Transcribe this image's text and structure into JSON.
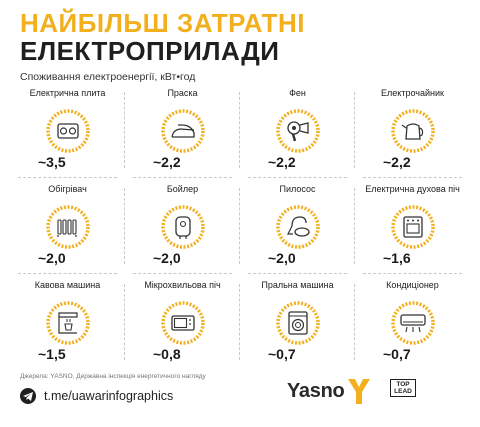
{
  "header": {
    "title_line1": "НАЙБІЛЬШ ЗАТРАТНІ",
    "title_line2": "ЕЛЕКТРОПРИЛАДИ",
    "subtitle": "Споживання електроенергії, кВт•год"
  },
  "colors": {
    "accent": "#f2b01e",
    "text": "#1f1f1f",
    "divider": "#c9c9c9"
  },
  "appliances": [
    {
      "name": "Електрична плита",
      "value": "~3,5",
      "icon": "electric-stove-icon"
    },
    {
      "name": "Праска",
      "value": "~2,2",
      "icon": "iron-icon"
    },
    {
      "name": "Фен",
      "value": "~2,2",
      "icon": "hair-dryer-icon"
    },
    {
      "name": "Електрочайник",
      "value": "~2,2",
      "icon": "kettle-icon"
    },
    {
      "name": "Обігрівач",
      "value": "~2,0",
      "icon": "heater-icon"
    },
    {
      "name": "Бойлер",
      "value": "~2,0",
      "icon": "boiler-icon"
    },
    {
      "name": "Пилосос",
      "value": "~2,0",
      "icon": "vacuum-icon"
    },
    {
      "name": "Електрична духова піч",
      "value": "~1,6",
      "icon": "oven-icon"
    },
    {
      "name": "Кавова машина",
      "value": "~1,5",
      "icon": "coffee-machine-icon"
    },
    {
      "name": "Мікрохвильова піч",
      "value": "~0,8",
      "icon": "microwave-icon"
    },
    {
      "name": "Пральна машина",
      "value": "~0,7",
      "icon": "washing-machine-icon"
    },
    {
      "name": "Кондиціонер",
      "value": "~0,7",
      "icon": "air-conditioner-icon"
    }
  ],
  "footer": {
    "source": "Джерела: YASNO, Державна інспекція енергетичного нагляду",
    "telegram": "t.me/uawarinfographics",
    "brand": "Yasno",
    "partner": "TOP LEAD"
  }
}
